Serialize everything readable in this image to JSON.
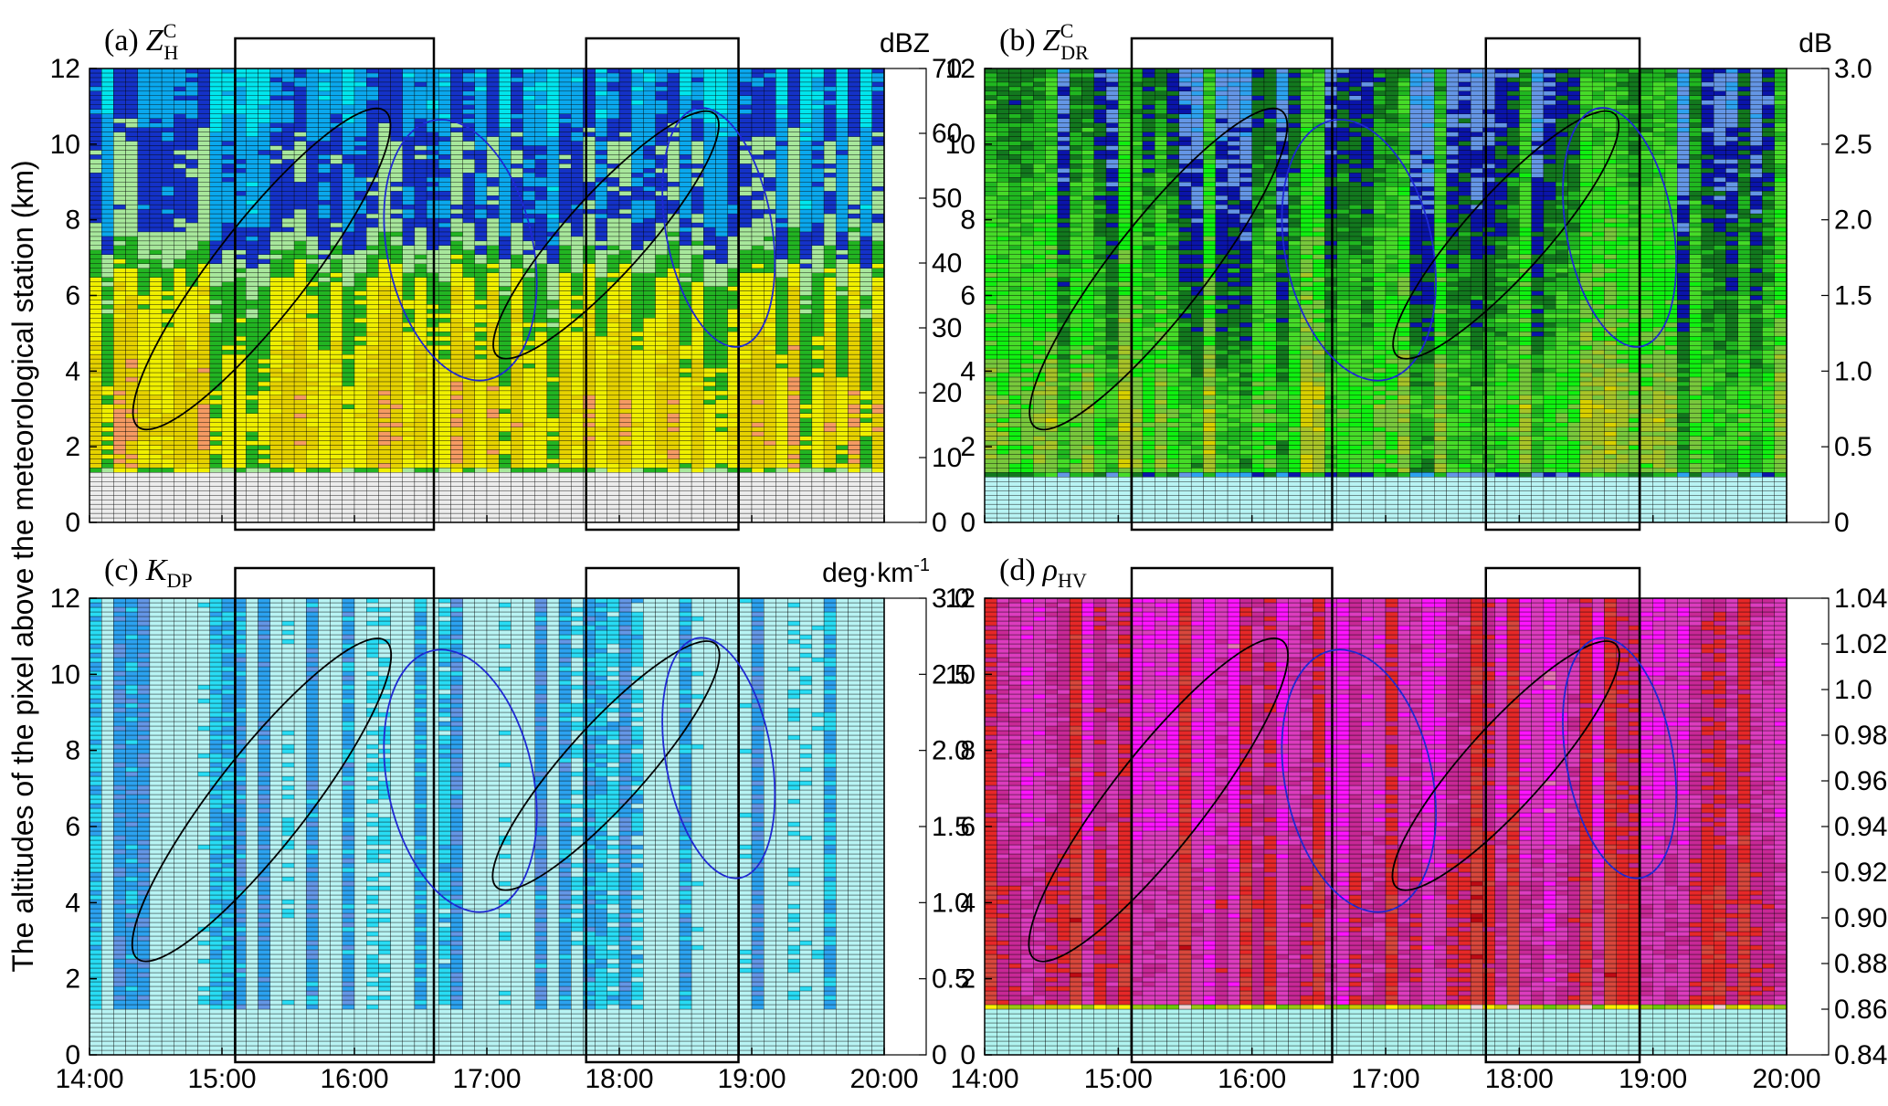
{
  "figure": {
    "ylabel": "The altitudes of the pixel above the meteorological station (km)"
  },
  "palettes": {
    "refl": [
      "#ececec",
      "#00e6ee",
      "#0aa8ee",
      "#1432c8",
      "#a8e89c",
      "#22b422",
      "#f0f000",
      "#e6d200",
      "#f59a62",
      "#f06414",
      "#e61010",
      "#aa1818",
      "#dc6e80",
      "#f08ce6"
    ],
    "pol": [
      "#b8f4f4",
      "#28dcf4",
      "#2ca2f0",
      "#6496e6",
      "#0a14aa",
      "#12781e",
      "#20b820",
      "#46dc28",
      "#10f010",
      "#78c83c",
      "#a8c428",
      "#d8d000",
      "#ecd000",
      "#f8f000",
      "#f0d0c0",
      "#dc7896",
      "#f08cd2",
      "#f020f0",
      "#d83cb4",
      "#cc2864",
      "#e62828",
      "#f06450",
      "#e04040",
      "#c81414",
      "#c8c8c8",
      "#c050d0",
      "#a040d0",
      "#8c28c8",
      "#782890",
      "#502870"
    ],
    "rho": [
      "#b0f4f0",
      "#78dcd0",
      "#3ca0f0",
      "#3c82c8",
      "#143ca0",
      "#128a1e",
      "#08cc08",
      "#6ac80a",
      "#96c814",
      "#c8c800",
      "#f8f000",
      "#f0d2d2",
      "#e678b4",
      "#ff14ff",
      "#dc3cbe",
      "#c82896",
      "#e62828",
      "#d8473c",
      "#be0a14",
      "#a04bc8",
      "#7832c8",
      "#500a50"
    ]
  },
  "chart_data": [
    {
      "id": "a",
      "type": "heatmap",
      "panel_label": "(a)",
      "symbol": "Z",
      "symbol_sub": "H",
      "symbol_sup": "C",
      "unit": "dBZ",
      "x_tick_labels": [
        "14:00",
        "15:00",
        "16:00",
        "17:00",
        "18:00",
        "19:00",
        "20:00"
      ],
      "x_range": [
        14.0,
        20.0
      ],
      "y_tick_labels": [
        "0",
        "2",
        "4",
        "6",
        "8",
        "10",
        "12"
      ],
      "ylim": [
        0,
        12
      ],
      "colorbar_ticks": [
        "0",
        "10",
        "20",
        "30",
        "40",
        "50",
        "60",
        "70"
      ],
      "colorbar_range": [
        0,
        70
      ],
      "palette": "refl",
      "empty_below_km": 1.3,
      "profile": [
        {
          "h": 0,
          "v": 0
        },
        {
          "h": 1.3,
          "v": 0
        },
        {
          "h": 1.4,
          "v": 34
        },
        {
          "h": 2.5,
          "v": 36
        },
        {
          "h": 4.5,
          "v": 33
        },
        {
          "h": 6.2,
          "v": 30
        },
        {
          "h": 7.0,
          "v": 24
        },
        {
          "h": 8.2,
          "v": 16
        },
        {
          "h": 9.8,
          "v": 18
        },
        {
          "h": 10.8,
          "v": 13
        },
        {
          "h": 12,
          "v": 12
        }
      ],
      "time_boxes": [
        [
          15.1,
          16.6
        ],
        [
          17.75,
          18.9
        ]
      ],
      "ellipses": [
        {
          "color": "black",
          "cx": 15.3,
          "cy": 6.7,
          "rx": 0.35,
          "ry": 5.3,
          "angle_deg": 38
        },
        {
          "color": "blue",
          "cx": 16.8,
          "cy": 7.2,
          "rx": 0.55,
          "ry": 3.5,
          "angle_deg": -12
        },
        {
          "color": "black",
          "cx": 17.9,
          "cy": 7.6,
          "rx": 0.3,
          "ry": 4.3,
          "angle_deg": 42
        },
        {
          "color": "blue",
          "cx": 18.75,
          "cy": 7.8,
          "rx": 0.4,
          "ry": 3.2,
          "angle_deg": -10
        }
      ]
    },
    {
      "id": "b",
      "type": "heatmap",
      "panel_label": "(b)",
      "symbol": "Z",
      "symbol_sub": "DR",
      "symbol_sup": "C",
      "unit": "dB",
      "x_tick_labels": [
        "14:00",
        "15:00",
        "16:00",
        "17:00",
        "18:00",
        "19:00",
        "20:00"
      ],
      "x_range": [
        14.0,
        20.0
      ],
      "y_tick_labels": [
        "0",
        "2",
        "4",
        "6",
        "8",
        "10",
        "12"
      ],
      "ylim": [
        0,
        12
      ],
      "colorbar_ticks": [
        "0",
        "0.5",
        "1.0",
        "1.5",
        "2.0",
        "2.5",
        "3.0"
      ],
      "colorbar_range": [
        0,
        3
      ],
      "palette": "pol",
      "empty_below_km": 1.2,
      "profile": [
        {
          "h": 0,
          "v": 0
        },
        {
          "h": 1.2,
          "v": 0
        },
        {
          "h": 1.3,
          "v": 0.85
        },
        {
          "h": 3.0,
          "v": 0.9
        },
        {
          "h": 5.0,
          "v": 0.75
        },
        {
          "h": 7.0,
          "v": 0.7
        },
        {
          "h": 9.0,
          "v": 0.6
        },
        {
          "h": 12,
          "v": 0.5
        }
      ],
      "time_boxes": [
        [
          15.1,
          16.6
        ],
        [
          17.75,
          18.9
        ]
      ],
      "ellipses": [
        {
          "color": "black",
          "cx": 15.3,
          "cy": 6.7,
          "rx": 0.35,
          "ry": 5.3,
          "angle_deg": 38
        },
        {
          "color": "blue",
          "cx": 16.8,
          "cy": 7.2,
          "rx": 0.55,
          "ry": 3.5,
          "angle_deg": -12
        },
        {
          "color": "black",
          "cx": 17.9,
          "cy": 7.6,
          "rx": 0.3,
          "ry": 4.3,
          "angle_deg": 42
        },
        {
          "color": "blue",
          "cx": 18.75,
          "cy": 7.8,
          "rx": 0.4,
          "ry": 3.2,
          "angle_deg": -10
        }
      ]
    },
    {
      "id": "c",
      "type": "heatmap",
      "panel_label": "(c)",
      "symbol": "K",
      "symbol_sub": "DP",
      "symbol_sup": "",
      "unit": "deg·km",
      "unit_sup": "-1",
      "x_tick_labels": [
        "14:00",
        "15:00",
        "16:00",
        "17:00",
        "18:00",
        "19:00",
        "20:00"
      ],
      "x_range": [
        14.0,
        20.0
      ],
      "y_tick_labels": [
        "0",
        "2",
        "4",
        "6",
        "8",
        "10",
        "12"
      ],
      "ylim": [
        0,
        12
      ],
      "colorbar_ticks": [
        "0",
        "0.5",
        "1.0",
        "1.5",
        "2.0",
        "2.5",
        "3.0"
      ],
      "colorbar_range": [
        0,
        3
      ],
      "palette": "pol",
      "empty_below_km": 1.2,
      "profile": [
        {
          "h": 0,
          "v": 0
        },
        {
          "h": 1.2,
          "v": 0
        },
        {
          "h": 1.3,
          "v": 0.05
        },
        {
          "h": 12,
          "v": 0.05
        }
      ],
      "time_boxes": [
        [
          15.1,
          16.6
        ],
        [
          17.75,
          18.9
        ]
      ],
      "ellipses": [
        {
          "color": "black",
          "cx": 15.3,
          "cy": 6.7,
          "rx": 0.35,
          "ry": 5.3,
          "angle_deg": 38
        },
        {
          "color": "blue",
          "cx": 16.8,
          "cy": 7.2,
          "rx": 0.55,
          "ry": 3.5,
          "angle_deg": -12
        },
        {
          "color": "black",
          "cx": 17.9,
          "cy": 7.6,
          "rx": 0.3,
          "ry": 4.3,
          "angle_deg": 42
        },
        {
          "color": "blue",
          "cx": 18.75,
          "cy": 7.8,
          "rx": 0.4,
          "ry": 3.2,
          "angle_deg": -10
        }
      ]
    },
    {
      "id": "d",
      "type": "heatmap",
      "panel_label": "(d)",
      "symbol": "ρ",
      "symbol_sub": "HV",
      "symbol_sup": "",
      "unit": "",
      "x_tick_labels": [
        "14:00",
        "15:00",
        "16:00",
        "17:00",
        "18:00",
        "19:00",
        "20:00"
      ],
      "x_range": [
        14.0,
        20.0
      ],
      "y_tick_labels": [
        "0",
        "2",
        "4",
        "6",
        "8",
        "10",
        "12"
      ],
      "ylim": [
        0,
        12
      ],
      "colorbar_ticks": [
        "0.84",
        "0.86",
        "0.88",
        "0.90",
        "0.92",
        "0.94",
        "0.96",
        "0.98",
        "1.0",
        "1.02",
        "1.04"
      ],
      "colorbar_range": [
        0.84,
        1.04
      ],
      "palette": "rho",
      "empty_below_km": 1.2,
      "profile": [
        {
          "h": 0,
          "v": 0.84
        },
        {
          "h": 1.2,
          "v": 0.84
        },
        {
          "h": 1.3,
          "v": 0.985
        },
        {
          "h": 4.5,
          "v": 0.985
        },
        {
          "h": 6.0,
          "v": 0.978
        },
        {
          "h": 12,
          "v": 0.978
        }
      ],
      "time_boxes": [
        [
          15.1,
          16.6
        ],
        [
          17.75,
          18.9
        ]
      ],
      "ellipses": [
        {
          "color": "black",
          "cx": 15.3,
          "cy": 6.7,
          "rx": 0.35,
          "ry": 5.3,
          "angle_deg": 38
        },
        {
          "color": "blue",
          "cx": 16.8,
          "cy": 7.2,
          "rx": 0.55,
          "ry": 3.5,
          "angle_deg": -12
        },
        {
          "color": "black",
          "cx": 17.9,
          "cy": 7.6,
          "rx": 0.3,
          "ry": 4.3,
          "angle_deg": 42
        },
        {
          "color": "blue",
          "cx": 18.75,
          "cy": 7.8,
          "rx": 0.4,
          "ry": 3.2,
          "angle_deg": -10
        }
      ]
    }
  ]
}
